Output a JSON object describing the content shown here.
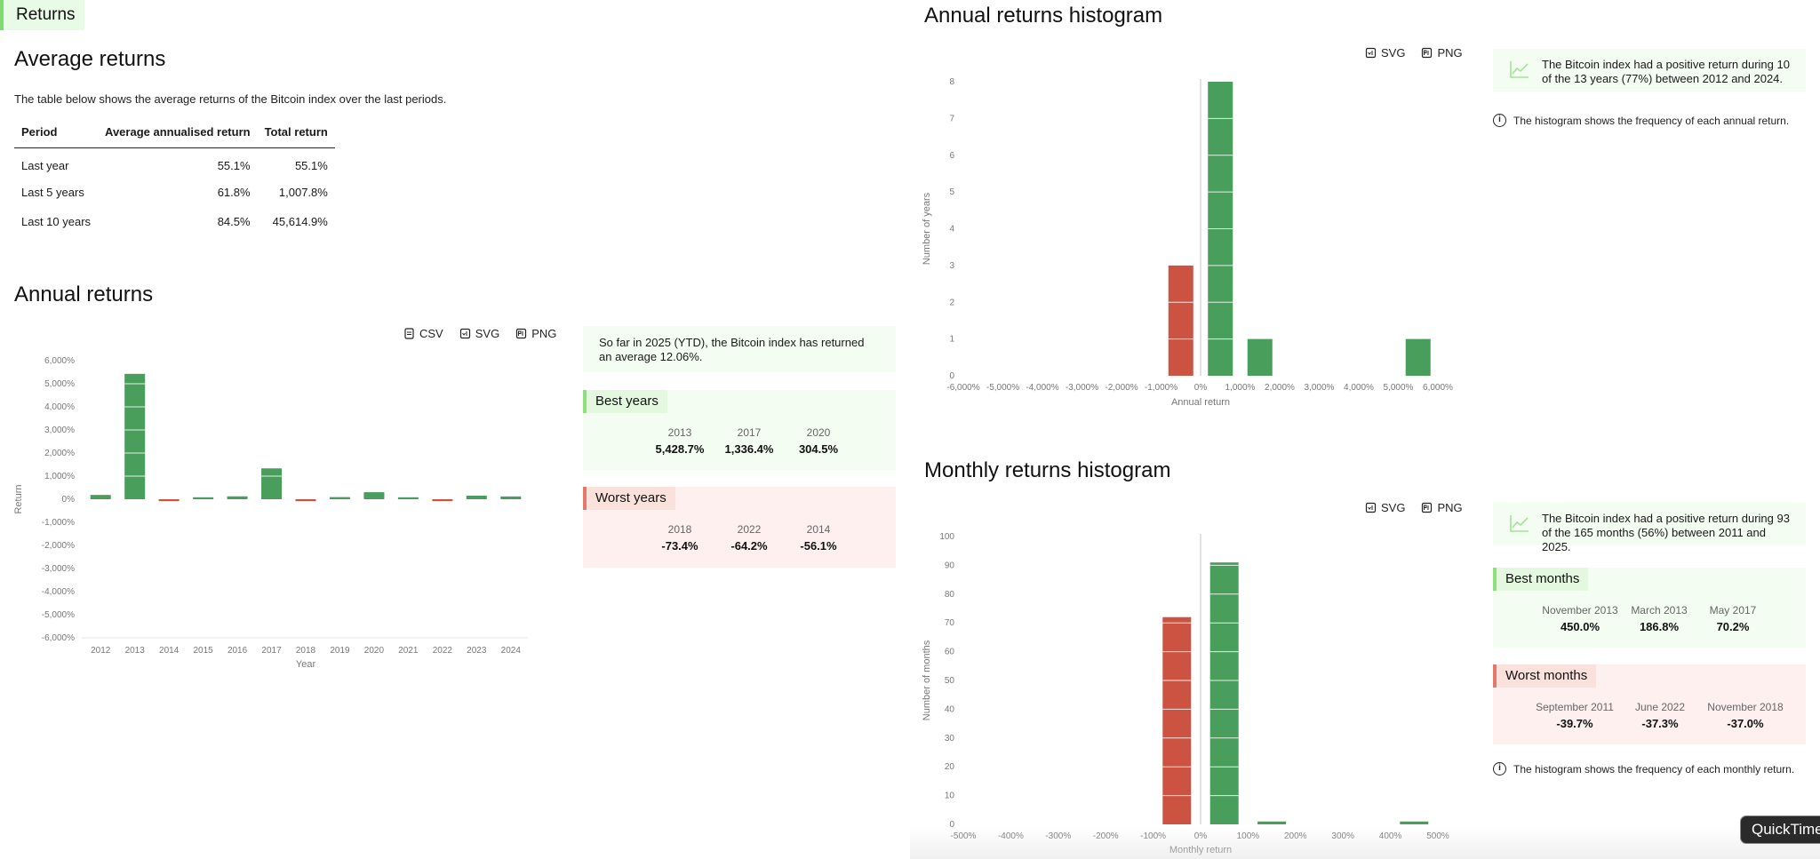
{
  "tab": {
    "label": "Returns"
  },
  "average": {
    "title": "Average returns",
    "description": "The table below shows the average returns of the Bitcoin index over the last periods.",
    "columns": [
      "Period",
      "Average annualised return",
      "Total return"
    ],
    "rows": [
      {
        "period": "Last year",
        "avg": "55.1%",
        "total": "55.1%"
      },
      {
        "period": "Last 5 years",
        "avg": "61.8%",
        "total": "1,007.8%"
      },
      {
        "period": "Last 10 years",
        "avg": "84.5%",
        "total": "45,614.9%"
      }
    ]
  },
  "annual": {
    "title": "Annual returns",
    "export": {
      "csv": "CSV",
      "svg": "SVG",
      "png": "PNG"
    },
    "ytd": "So far in 2025 (YTD), the Bitcoin index has returned an average 12.06%.",
    "best": {
      "title": "Best years",
      "items": [
        {
          "label": "2013",
          "value": "5,428.7%"
        },
        {
          "label": "2017",
          "value": "1,336.4%"
        },
        {
          "label": "2020",
          "value": "304.5%"
        }
      ]
    },
    "worst": {
      "title": "Worst years",
      "items": [
        {
          "label": "2018",
          "value": "-73.4%"
        },
        {
          "label": "2022",
          "value": "-64.2%"
        },
        {
          "label": "2014",
          "value": "-56.1%"
        }
      ]
    }
  },
  "annual_hist": {
    "title": "Annual returns histogram",
    "export": {
      "svg": "SVG",
      "png": "PNG"
    },
    "summary": "The Bitcoin index had a positive return during 10 of the 13 years (77%) between 2012 and 2024.",
    "info": "The histogram shows the frequency of each annual return."
  },
  "monthly_hist": {
    "title": "Monthly returns histogram",
    "export": {
      "svg": "SVG",
      "png": "PNG"
    },
    "summary": "The Bitcoin index had a positive return during 93 of the 165 months (56%) between 2011 and 2025.",
    "info": "The histogram shows the frequency of each monthly return.",
    "best": {
      "title": "Best months",
      "items": [
        {
          "label": "November 2013",
          "value": "450.0%"
        },
        {
          "label": "March 2013",
          "value": "186.8%"
        },
        {
          "label": "May 2017",
          "value": "70.2%"
        }
      ]
    },
    "worst": {
      "title": "Worst months",
      "items": [
        {
          "label": "September 2011",
          "value": "-39.7%"
        },
        {
          "label": "June 2022",
          "value": "-37.3%"
        },
        {
          "label": "November 2018",
          "value": "-37.0%"
        }
      ]
    }
  },
  "overlay": {
    "quicktime": "QuickTime"
  },
  "colors": {
    "positive": "#4a9e5c",
    "negative": "#cc5242",
    "grid": "#e5e5e5",
    "axis_text": "#777777"
  },
  "chart_data": [
    {
      "id": "annual",
      "type": "bar",
      "xlabel": "Year",
      "ylabel": "Return",
      "ylim": [
        -6000,
        6000
      ],
      "yticks": [
        -6000,
        -5000,
        -4000,
        -3000,
        -2000,
        -1000,
        0,
        1000,
        2000,
        3000,
        4000,
        5000,
        6000
      ],
      "ytick_labels": [
        "-6,000%",
        "-5,000%",
        "-4,000%",
        "-3,000%",
        "-2,000%",
        "-1,000%",
        "0%",
        "1,000%",
        "2,000%",
        "3,000%",
        "4,000%",
        "5,000%",
        "6,000%"
      ],
      "categories": [
        "2012",
        "2013",
        "2014",
        "2015",
        "2016",
        "2017",
        "2018",
        "2019",
        "2020",
        "2021",
        "2022",
        "2023",
        "2024"
      ],
      "values": [
        186,
        5428.7,
        -56.1,
        35,
        125,
        1336.4,
        -73.4,
        92,
        304.5,
        60,
        -64.2,
        155,
        121
      ],
      "grid": false
    },
    {
      "id": "annual_hist",
      "type": "bar",
      "xlabel": "Annual return",
      "ylabel": "Number of years",
      "xlim": [
        -6000,
        6000
      ],
      "ylim": [
        0,
        8
      ],
      "yticks": [
        0,
        1,
        2,
        3,
        4,
        5,
        6,
        7,
        8
      ],
      "ytick_labels": [
        "0",
        "1",
        "2",
        "3",
        "4",
        "5",
        "6",
        "7",
        "8"
      ],
      "xticks": [
        -6000,
        -5000,
        -4000,
        -3000,
        -2000,
        -1000,
        0,
        1000,
        2000,
        3000,
        4000,
        5000,
        6000
      ],
      "xtick_labels": [
        "-6,000%",
        "-5,000%",
        "-4,000%",
        "-3,000%",
        "-2,000%",
        "-1,000%",
        "0%",
        "1,000%",
        "2,000%",
        "3,000%",
        "4,000%",
        "5,000%",
        "6,000%"
      ],
      "bins": [
        {
          "from": -1000,
          "to": 0,
          "count": 3
        },
        {
          "from": 0,
          "to": 1000,
          "count": 8
        },
        {
          "from": 1000,
          "to": 2000,
          "count": 1
        },
        {
          "from": 5000,
          "to": 6000,
          "count": 1
        }
      ]
    },
    {
      "id": "monthly_hist",
      "type": "bar",
      "xlabel": "Monthly return",
      "ylabel": "Number of months",
      "xlim": [
        -500,
        500
      ],
      "ylim": [
        0,
        100
      ],
      "yticks": [
        0,
        10,
        20,
        30,
        40,
        50,
        60,
        70,
        80,
        90,
        100
      ],
      "ytick_labels": [
        "0",
        "10",
        "20",
        "30",
        "40",
        "50",
        "60",
        "70",
        "80",
        "90",
        "100"
      ],
      "xticks": [
        -500,
        -400,
        -300,
        -200,
        -100,
        0,
        100,
        200,
        300,
        400,
        500
      ],
      "xtick_labels": [
        "-500%",
        "-400%",
        "-300%",
        "-200%",
        "-100%",
        "0%",
        "100%",
        "200%",
        "300%",
        "400%",
        "500%"
      ],
      "bins": [
        {
          "from": -80,
          "to": -20,
          "count": 72
        },
        {
          "from": 20,
          "to": 80,
          "count": 91
        },
        {
          "from": 120,
          "to": 180,
          "count": 1
        },
        {
          "from": 420,
          "to": 480,
          "count": 1
        }
      ]
    }
  ]
}
